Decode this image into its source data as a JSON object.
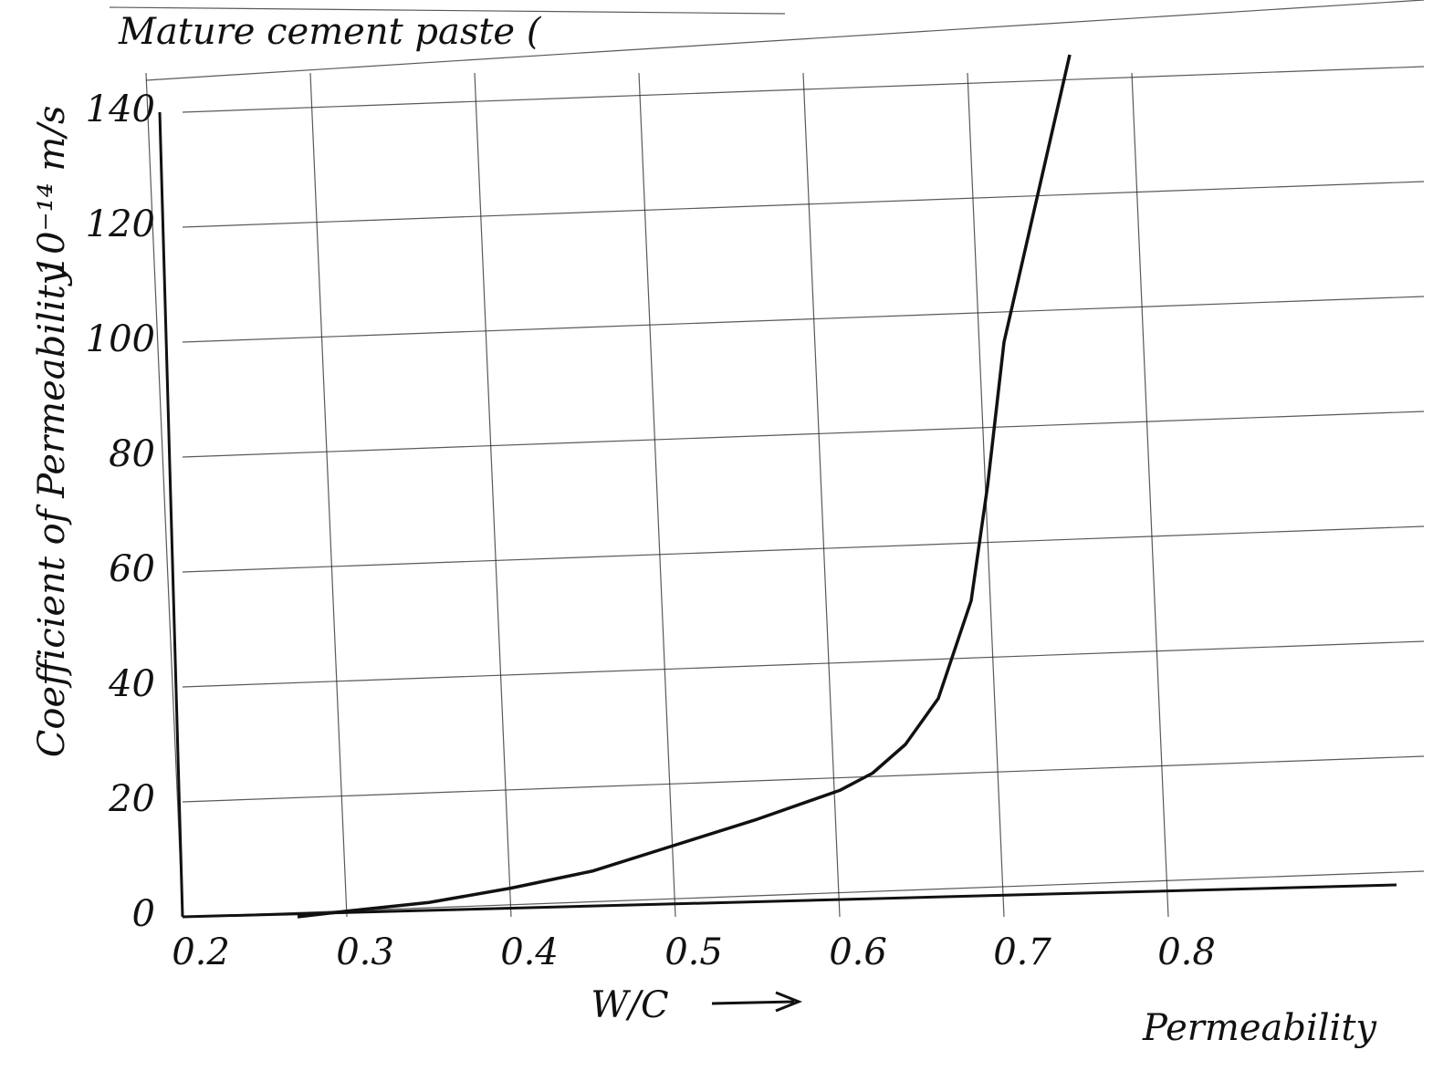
{
  "chart_data": {
    "type": "line",
    "title": "Mature cement paste (",
    "x_label": "W/C",
    "y_label": "Coefficient of Permeability",
    "y_unit": "10⁻¹⁴ m/s",
    "note": "Permeability",
    "x": [
      0.27,
      0.3,
      0.35,
      0.4,
      0.45,
      0.5,
      0.55,
      0.6,
      0.62,
      0.64,
      0.66,
      0.68,
      0.69,
      0.7,
      0.72,
      0.74
    ],
    "series": [
      {
        "name": "Permeability",
        "color": "#111111",
        "values": [
          0,
          1,
          2.5,
          5,
          8,
          12.5,
          17,
          22,
          25,
          30,
          38,
          55,
          75,
          100,
          125,
          150
        ]
      }
    ],
    "xlim": [
      0.2,
      0.9
    ],
    "ylim": [
      0,
      150
    ],
    "xticks": [
      {
        "value": 0.2,
        "label": "0.2"
      },
      0.3,
      0.4,
      0.5,
      0.6,
      0.7,
      0.8
    ],
    "yticks": [
      0,
      20,
      40,
      60,
      80,
      100,
      120,
      140
    ],
    "grid": true
  }
}
